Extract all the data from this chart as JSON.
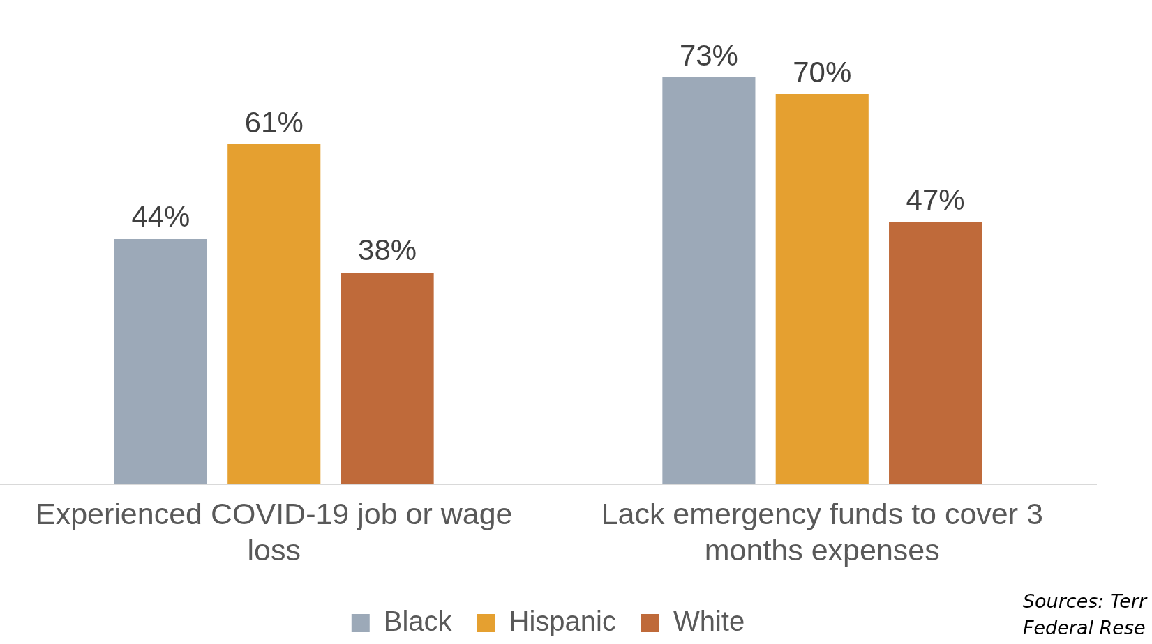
{
  "chart_data": {
    "type": "bar",
    "categories": [
      "Experienced COVID-19 job or wage loss",
      "Lack emergency funds to cover 3 months expenses"
    ],
    "series": [
      {
        "name": "Black",
        "color": "#9ca9b8",
        "values": [
          44,
          73
        ],
        "value_labels": [
          "44%",
          "73%"
        ]
      },
      {
        "name": "Hispanic",
        "color": "#e5a030",
        "values": [
          61,
          70
        ],
        "value_labels": [
          "61%",
          "70%"
        ]
      },
      {
        "name": "White",
        "color": "#bf6a3a",
        "values": [
          38,
          47
        ],
        "value_labels": [
          "38%",
          "47%"
        ]
      }
    ],
    "tick_labels": "x",
    "grid": false,
    "legend": "bottom",
    "annotations": [
      "Sources: Terr",
      "Federal Rese"
    ]
  }
}
